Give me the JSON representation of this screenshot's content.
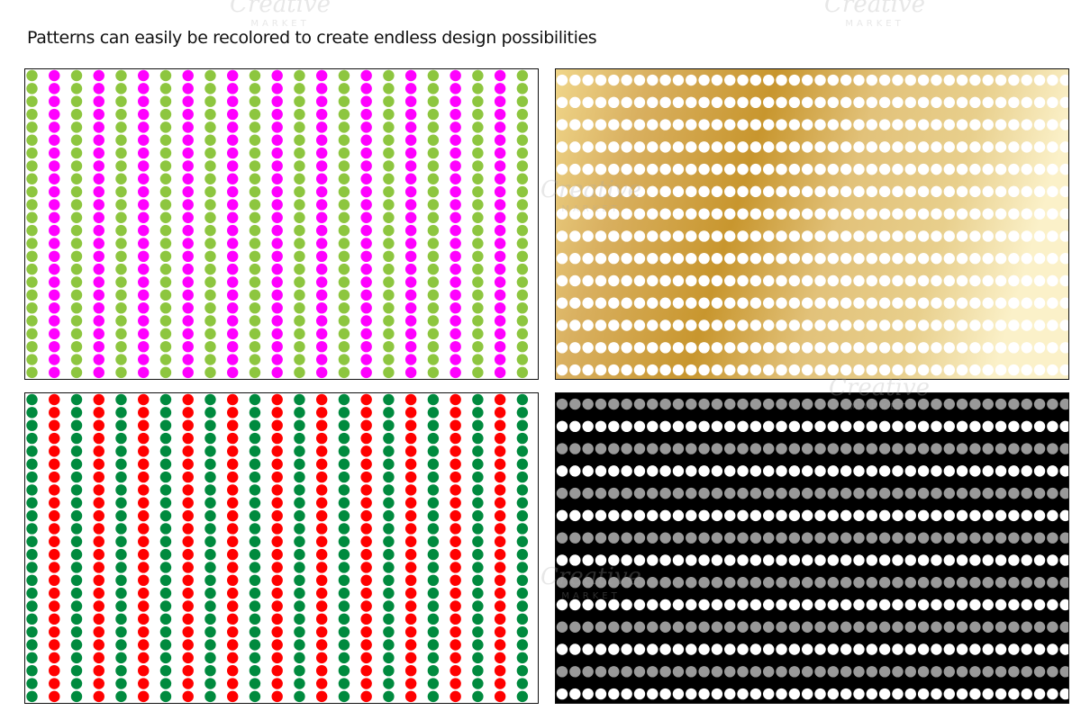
{
  "caption": "Patterns can easily be recolored to create endless design possibilities",
  "watermark": {
    "line1": "Creative",
    "line2": "MARKET"
  },
  "patterns": [
    {
      "id": "sw-tl",
      "name": "pattern-lime-magenta-columns",
      "orientation": "vertical",
      "background": "#ffffff",
      "dot_colors": [
        "#8dc63f",
        "#ff00ff"
      ]
    },
    {
      "id": "sw-tr",
      "name": "pattern-gold-white-rows",
      "orientation": "horizontal",
      "background": "gold-gradient",
      "dot_colors": [
        "#ffffff"
      ]
    },
    {
      "id": "sw-bl",
      "name": "pattern-green-red-columns",
      "orientation": "vertical",
      "background": "#ffffff",
      "dot_colors": [
        "#008a3e",
        "#ff0000"
      ]
    },
    {
      "id": "sw-br",
      "name": "pattern-black-white-gray-rows",
      "orientation": "horizontal",
      "background": "#000000",
      "dot_colors": [
        "#999999",
        "#ffffff"
      ]
    }
  ]
}
